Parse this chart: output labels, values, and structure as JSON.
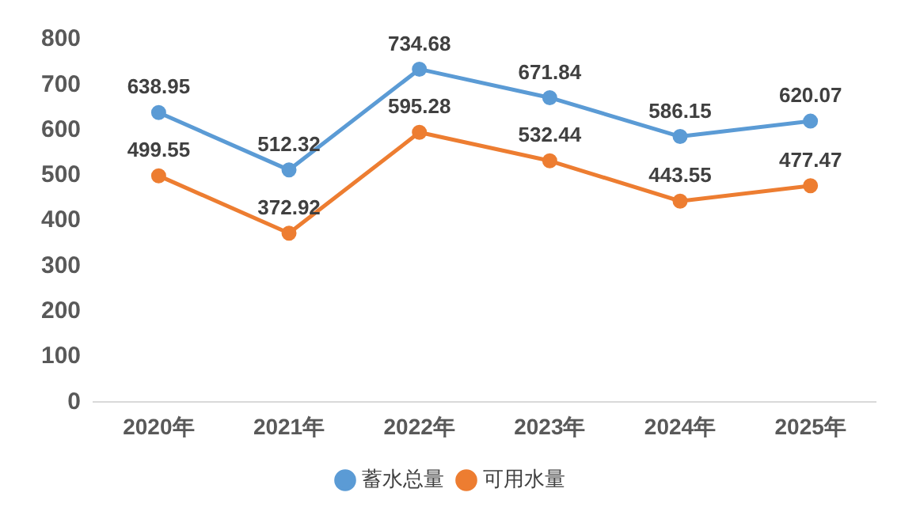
{
  "chart_data": {
    "type": "line",
    "categories": [
      "2020年",
      "2021年",
      "2022年",
      "2023年",
      "2024年",
      "2025年"
    ],
    "series": [
      {
        "name": "蓄水总量",
        "color": "#5b9bd5",
        "values": [
          638.95,
          512.32,
          734.68,
          671.84,
          586.15,
          620.07
        ]
      },
      {
        "name": "可用水量",
        "color": "#ed7d31",
        "values": [
          499.55,
          372.92,
          595.28,
          532.44,
          443.55,
          477.47
        ]
      }
    ],
    "ylim": [
      0,
      800
    ],
    "yticks": [
      0,
      100,
      200,
      300,
      400,
      500,
      600,
      700,
      800
    ],
    "grid": false,
    "legend": "bottom",
    "marker": "circle",
    "line_style": "solid",
    "data_labels": true
  }
}
